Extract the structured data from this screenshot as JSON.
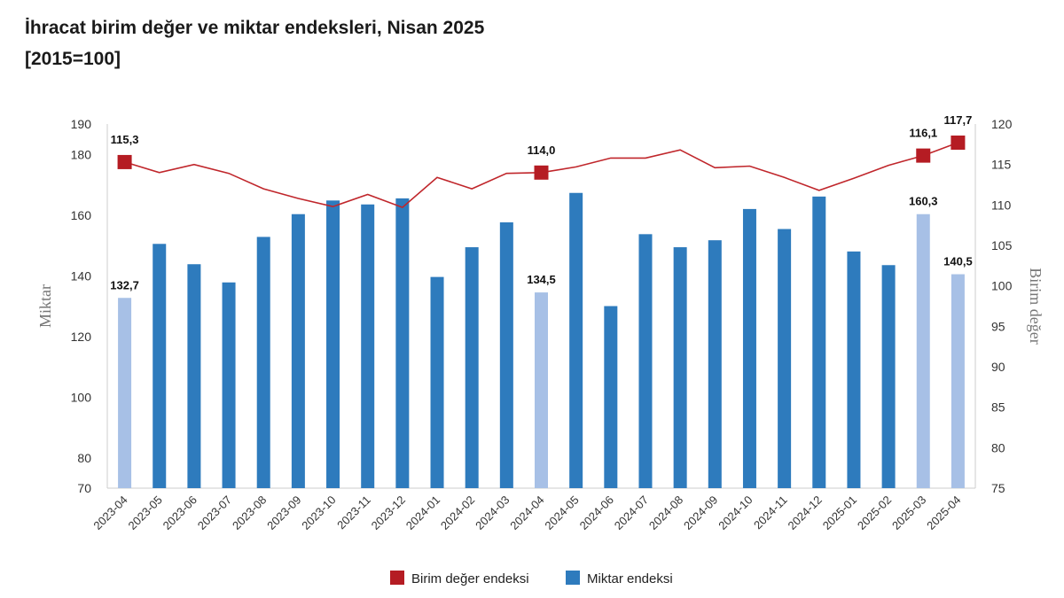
{
  "chart_data": {
    "type": "bar",
    "title": "İhracat birim değer ve miktar endeksleri, Nisan 2025",
    "subtitle": "[2015=100]",
    "categories": [
      "2023-04",
      "2023-05",
      "2023-06",
      "2023-07",
      "2023-08",
      "2023-09",
      "2023-10",
      "2023-11",
      "2023-12",
      "2024-01",
      "2024-02",
      "2024-03",
      "2024-04",
      "2024-05",
      "2024-06",
      "2024-07",
      "2024-08",
      "2024-09",
      "2024-10",
      "2024-11",
      "2024-12",
      "2025-01",
      "2025-02",
      "2025-03",
      "2025-04"
    ],
    "series": [
      {
        "name": "Miktar endeksi",
        "type": "bar",
        "axis": "left",
        "values": [
          132.7,
          150.5,
          143.8,
          137.8,
          152.8,
          160.3,
          164.8,
          163.5,
          165.5,
          139.6,
          149.4,
          157.6,
          134.5,
          167.3,
          130.0,
          153.7,
          149.4,
          151.7,
          162.0,
          155.4,
          166.1,
          148.0,
          143.5,
          160.3,
          140.5
        ],
        "highlighted": [
          0,
          12,
          23,
          24
        ]
      },
      {
        "name": "Birim değer endeksi",
        "type": "line",
        "axis": "right",
        "values": [
          115.3,
          114.0,
          115.0,
          113.9,
          112.0,
          110.8,
          109.8,
          111.3,
          109.7,
          113.4,
          112.0,
          113.9,
          114.0,
          114.7,
          115.8,
          115.8,
          116.8,
          114.6,
          114.8,
          113.4,
          111.8,
          113.3,
          114.9,
          116.1,
          117.7
        ],
        "markers": [
          0,
          12,
          23,
          24
        ]
      }
    ],
    "data_labels": [
      {
        "series": "Birim değer endeksi",
        "index": 0,
        "text": "115,3"
      },
      {
        "series": "Birim değer endeksi",
        "index": 12,
        "text": "114,0"
      },
      {
        "series": "Birim değer endeksi",
        "index": 23,
        "text": "116,1"
      },
      {
        "series": "Birim değer endeksi",
        "index": 24,
        "text": "117,7"
      },
      {
        "series": "Miktar endeksi",
        "index": 0,
        "text": "132,7"
      },
      {
        "series": "Miktar endeksi",
        "index": 12,
        "text": "134,5"
      },
      {
        "series": "Miktar endeksi",
        "index": 23,
        "text": "160,3"
      },
      {
        "series": "Miktar endeksi",
        "index": 24,
        "text": "140,5"
      }
    ],
    "left_axis": {
      "label": "Miktar",
      "min": 70,
      "max": 190,
      "ticks": [
        70,
        80,
        100,
        120,
        140,
        160,
        180,
        190
      ]
    },
    "right_axis": {
      "label": "Birim değer",
      "min": 75,
      "max": 120,
      "ticks": [
        75,
        80,
        85,
        90,
        95,
        100,
        105,
        110,
        115,
        120
      ]
    },
    "grid": false,
    "legend": {
      "position": "bottom",
      "entries": [
        "Birim değer endeksi",
        "Miktar endeksi"
      ]
    },
    "colors": {
      "bar": "#2e7bbd",
      "bar_highlight": "#a7c0e6",
      "line": "#c0262b",
      "marker": "#b51c23",
      "axis": "#cccccc"
    }
  }
}
